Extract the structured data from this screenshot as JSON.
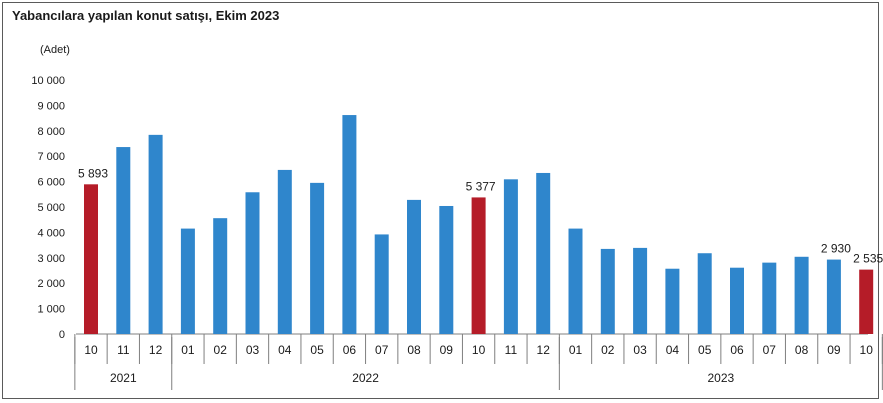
{
  "chart_data": {
    "type": "bar",
    "title": "Yabancılara yapılan konut satışı, Ekim 2023",
    "unit_label": "(Adet)",
    "ylim": [
      0,
      10000
    ],
    "yticks": [
      "10 000",
      "9 000",
      "8 000",
      "7 000",
      "6 000",
      "5 000",
      "4 000",
      "3 000",
      "2 000",
      "1 000",
      "0"
    ],
    "grid": false,
    "categories": [
      "10",
      "11",
      "12",
      "01",
      "02",
      "03",
      "04",
      "05",
      "06",
      "07",
      "08",
      "09",
      "10",
      "11",
      "12",
      "01",
      "02",
      "03",
      "04",
      "05",
      "06",
      "07",
      "08",
      "09",
      "10"
    ],
    "values": [
      5893,
      7360,
      7840,
      4150,
      4560,
      5580,
      6460,
      5950,
      8620,
      3920,
      5280,
      5040,
      5377,
      6090,
      6340,
      4150,
      3350,
      3390,
      2570,
      3180,
      2610,
      2810,
      3040,
      2930,
      2535
    ],
    "highlighted": [
      true,
      false,
      false,
      false,
      false,
      false,
      false,
      false,
      false,
      false,
      false,
      false,
      true,
      false,
      false,
      false,
      false,
      false,
      false,
      false,
      false,
      false,
      false,
      false,
      true
    ],
    "data_labels": [
      {
        "index": 0,
        "text": "5 893"
      },
      {
        "index": 12,
        "text": "5 377"
      },
      {
        "index": 23,
        "text": "2 930"
      },
      {
        "index": 24,
        "text": "2 535"
      }
    ],
    "year_groups": [
      {
        "label": "2021",
        "start": 0,
        "end": 2
      },
      {
        "label": "2022",
        "start": 3,
        "end": 14
      },
      {
        "label": "2023",
        "start": 15,
        "end": 24
      }
    ],
    "colors": {
      "normal": "#2f86cc",
      "highlight": "#b51c28",
      "axis": "#7f7f7f"
    }
  }
}
